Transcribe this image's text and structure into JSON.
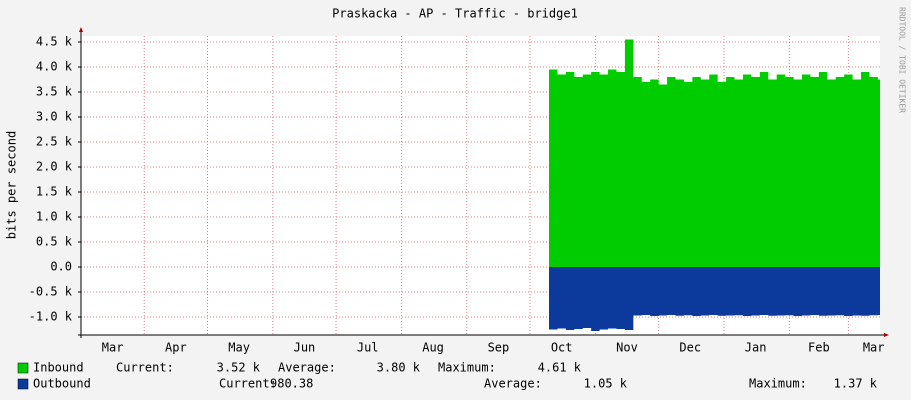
{
  "chart_data": {
    "type": "area",
    "title": "Praskacka - AP - Traffic - bridge1",
    "y_label": "bits per second",
    "watermark": "RRDTOOL / TOBI OETIKER",
    "xlim": [
      0,
      379
    ],
    "ylim": [
      -1360,
      4620
    ],
    "xgrid": [
      30,
      60,
      91,
      121,
      152,
      183,
      213,
      244,
      274,
      305,
      336,
      364
    ],
    "xticks": [
      {
        "value": 15,
        "label": "Mar"
      },
      {
        "value": 45,
        "label": "Apr"
      },
      {
        "value": 75,
        "label": "May"
      },
      {
        "value": 106,
        "label": "Jun"
      },
      {
        "value": 136,
        "label": "Jul"
      },
      {
        "value": 167,
        "label": "Aug"
      },
      {
        "value": 198,
        "label": "Sep"
      },
      {
        "value": 228,
        "label": "Oct"
      },
      {
        "value": 259,
        "label": "Nov"
      },
      {
        "value": 289,
        "label": "Dec"
      },
      {
        "value": 320,
        "label": "Jan"
      },
      {
        "value": 350,
        "label": "Feb"
      },
      {
        "value": 376,
        "label": "Mar"
      }
    ],
    "yticks": [
      {
        "value": -1000,
        "label": "-1.0 k"
      },
      {
        "value": -500,
        "label": "-0.5 k"
      },
      {
        "value": 0,
        "label": "0.0"
      },
      {
        "value": 500,
        "label": "0.5 k"
      },
      {
        "value": 1000,
        "label": "1.0 k"
      },
      {
        "value": 1500,
        "label": "1.5 k"
      },
      {
        "value": 2000,
        "label": "2.0 k"
      },
      {
        "value": 2500,
        "label": "2.5 k"
      },
      {
        "value": 3000,
        "label": "3.0 k"
      },
      {
        "value": 3500,
        "label": "3.5 k"
      },
      {
        "value": 4000,
        "label": "4.0 k"
      },
      {
        "value": 4500,
        "label": "4.5 k"
      }
    ],
    "grid": true,
    "x": [
      222,
      226,
      230,
      234,
      238,
      242,
      246,
      250,
      254,
      258,
      262,
      266,
      270,
      274,
      278,
      282,
      286,
      290,
      294,
      298,
      302,
      306,
      310,
      314,
      318,
      322,
      326,
      330,
      334,
      338,
      342,
      346,
      350,
      354,
      358,
      362,
      366,
      370,
      374,
      378
    ],
    "series": [
      {
        "name": "Inbound",
        "color": "#00cc00",
        "values": [
          3950,
          3850,
          3900,
          3800,
          3850,
          3900,
          3850,
          3950,
          3900,
          4550,
          3800,
          3700,
          3750,
          3650,
          3800,
          3750,
          3700,
          3800,
          3750,
          3850,
          3700,
          3800,
          3750,
          3850,
          3800,
          3900,
          3750,
          3850,
          3800,
          3750,
          3850,
          3800,
          3900,
          3750,
          3800,
          3850,
          3750,
          3900,
          3800,
          3750
        ],
        "stats": [
          {
            "label": "Current:",
            "value": "3.52 k"
          },
          {
            "label": "Average:",
            "value": "3.80 k"
          },
          {
            "label": "Maximum:",
            "value": "4.61 k"
          }
        ]
      },
      {
        "name": "Outbound",
        "color": "#0b3a9c",
        "values": [
          -1250,
          -1230,
          -1260,
          -1240,
          -1220,
          -1280,
          -1250,
          -1230,
          -1240,
          -1260,
          -970,
          -960,
          -980,
          -970,
          -960,
          -975,
          -965,
          -980,
          -970,
          -960,
          -975,
          -970,
          -965,
          -980,
          -970,
          -960,
          -975,
          -970,
          -965,
          -980,
          -970,
          -960,
          -975,
          -970,
          -965,
          -980,
          -970,
          -975,
          -965,
          -960
        ],
        "stats": [
          {
            "label": "Current:",
            "value": "980.38"
          },
          {
            "label": "Average:",
            "value": "1.05 k"
          },
          {
            "label": "Maximum:",
            "value": "1.37 k"
          }
        ]
      }
    ]
  }
}
